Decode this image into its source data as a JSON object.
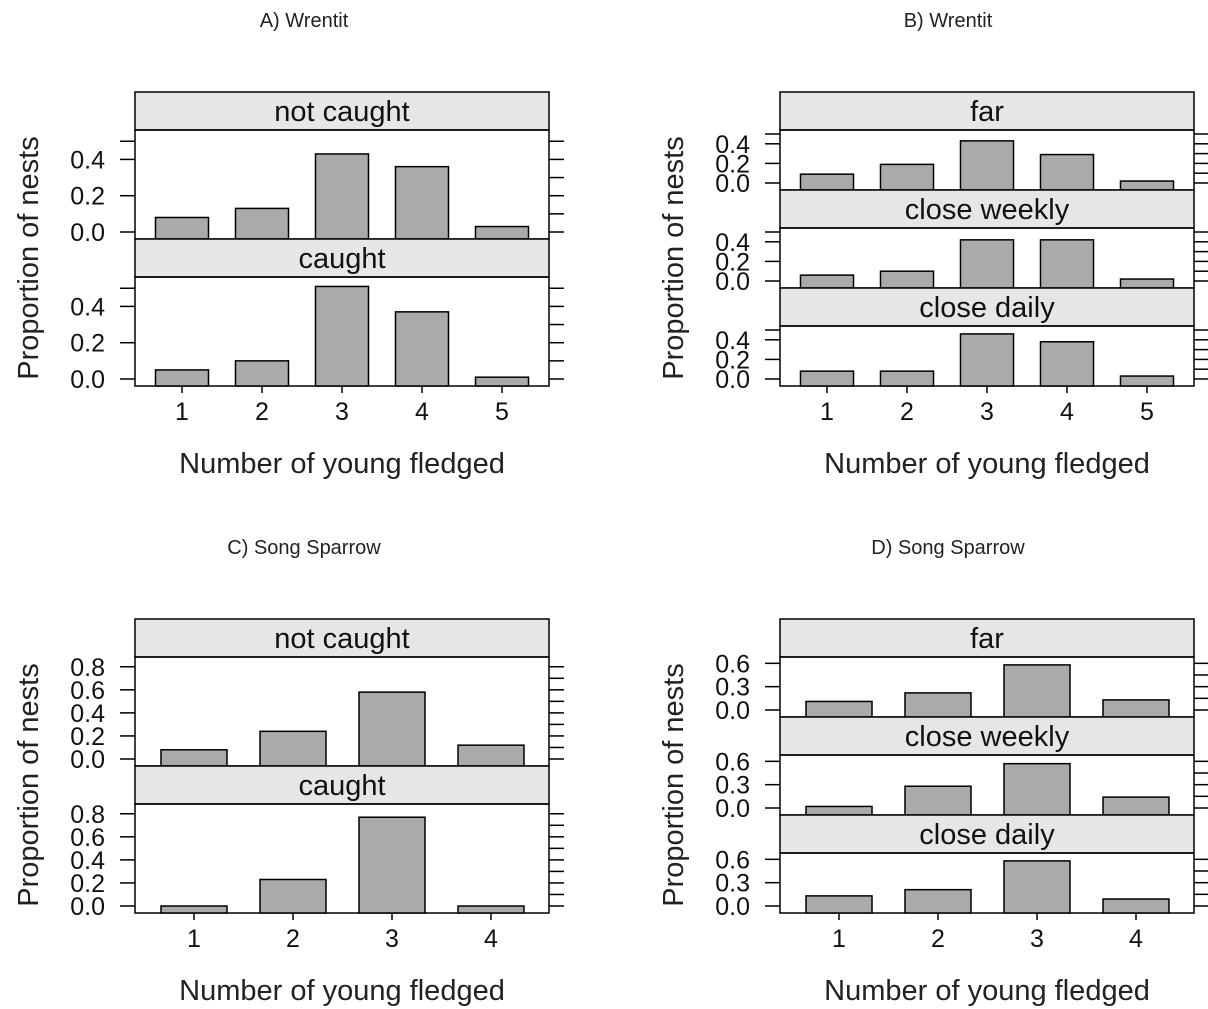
{
  "chart_data": [
    {
      "type": "bar",
      "title": "A) Wrentit",
      "xlabel": "Number of young fledged",
      "ylabel": "Proportion of nests",
      "categories": [
        "1",
        "2",
        "3",
        "4",
        "5"
      ],
      "panels": [
        {
          "strip": "not caught",
          "values": [
            0.08,
            0.13,
            0.43,
            0.36,
            0.03
          ]
        },
        {
          "strip": "caught",
          "values": [
            0.05,
            0.1,
            0.51,
            0.37,
            0.01
          ]
        }
      ],
      "yticks": [
        "0.0",
        "0.2",
        "0.4"
      ],
      "ylim": [
        0,
        0.54
      ],
      "grid": false
    },
    {
      "type": "bar",
      "title": "B) Wrentit",
      "xlabel": "Number of young fledged",
      "ylabel": "Proportion of nests",
      "categories": [
        "1",
        "2",
        "3",
        "4",
        "5"
      ],
      "panels": [
        {
          "strip": "far",
          "values": [
            0.09,
            0.19,
            0.43,
            0.29,
            0.02
          ]
        },
        {
          "strip": "close weekly",
          "values": [
            0.06,
            0.1,
            0.42,
            0.42,
            0.02
          ]
        },
        {
          "strip": "close daily",
          "values": [
            0.08,
            0.08,
            0.46,
            0.38,
            0.03
          ]
        }
      ],
      "yticks": [
        "0.0",
        "0.2",
        "0.4"
      ],
      "ylim": [
        0,
        0.5
      ],
      "grid": false
    },
    {
      "type": "bar",
      "title": "C) Song Sparrow",
      "xlabel": "Number of young fledged",
      "ylabel": "Proportion of nests",
      "categories": [
        "1",
        "2",
        "3",
        "4"
      ],
      "panels": [
        {
          "strip": "not caught",
          "values": [
            0.08,
            0.24,
            0.58,
            0.12
          ]
        },
        {
          "strip": "caught",
          "values": [
            0.0,
            0.23,
            0.77,
            0.0
          ]
        }
      ],
      "yticks": [
        "0.0",
        "0.2",
        "0.4",
        "0.6",
        "0.8"
      ],
      "ylim": [
        0,
        0.85
      ],
      "grid": false
    },
    {
      "type": "bar",
      "title": "D) Song Sparrow",
      "xlabel": "Number of young fledged",
      "ylabel": "Proportion of nests",
      "categories": [
        "1",
        "2",
        "3",
        "4"
      ],
      "panels": [
        {
          "strip": "far",
          "values": [
            0.11,
            0.22,
            0.58,
            0.13
          ]
        },
        {
          "strip": "close weekly",
          "values": [
            0.02,
            0.28,
            0.57,
            0.14
          ]
        },
        {
          "strip": "close daily",
          "values": [
            0.13,
            0.21,
            0.58,
            0.09
          ]
        }
      ],
      "yticks": [
        "0.0",
        "0.3",
        "0.6"
      ],
      "ylim": [
        0,
        0.63
      ],
      "grid": false
    }
  ],
  "colors": {
    "bar_fill": "#aaaaaa",
    "strip_fill": "#e6e6e6",
    "line": "#000000"
  }
}
